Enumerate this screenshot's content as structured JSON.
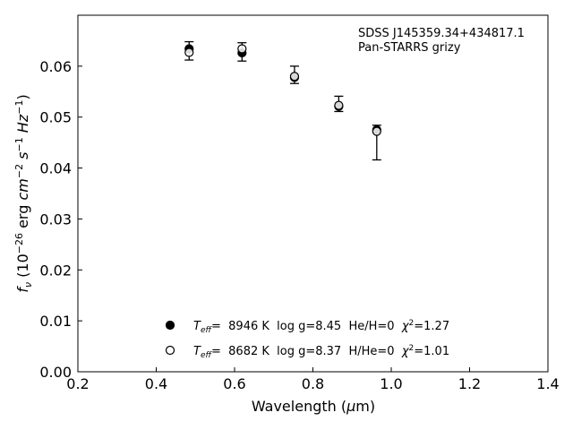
{
  "chart_data": {
    "type": "scatter",
    "title": "",
    "annotation": [
      "SDSS J145359.34+434817.1",
      "Pan-STARRS grizy"
    ],
    "xlabel": "Wavelength (μm)",
    "ylabel": "fν (10⁻²⁶ erg cm⁻² s⁻¹ Hz⁻¹)",
    "xlim": [
      0.2,
      1.4
    ],
    "ylim": [
      0.0,
      0.07
    ],
    "xticks": [
      0.2,
      0.4,
      0.6,
      0.8,
      1.0,
      1.2,
      1.4
    ],
    "xtick_labels": [
      "0.2",
      "0.4",
      "0.6",
      "0.8",
      "1.0",
      "1.2",
      "1.4"
    ],
    "yticks": [
      0.0,
      0.01,
      0.02,
      0.03,
      0.04,
      0.05,
      0.06
    ],
    "ytick_labels": [
      "0.00",
      "0.01",
      "0.02",
      "0.03",
      "0.04",
      "0.05",
      "0.06"
    ],
    "grid": false,
    "legend_position": "bottom-center",
    "observed": {
      "x": [
        0.484,
        0.619,
        0.753,
        0.866,
        0.963
      ],
      "y": [
        0.063,
        0.0628,
        0.0583,
        0.0526,
        0.045
      ],
      "yerr": [
        0.0018,
        0.0018,
        0.0017,
        0.0015,
        0.0034
      ]
    },
    "series": [
      {
        "name": "T_eff= 8946 K  log g=8.45  He/H=0  χ²=1.27",
        "marker": "filled-circle",
        "x": [
          0.484,
          0.619,
          0.753,
          0.866,
          0.963
        ],
        "y": [
          0.0634,
          0.0626,
          0.0578,
          0.0521,
          0.0475
        ]
      },
      {
        "name": "T_eff= 8682 K  log g=8.37  H/He=0  χ²=1.01",
        "marker": "open-circle",
        "x": [
          0.484,
          0.619,
          0.753,
          0.866,
          0.963
        ],
        "y": [
          0.0627,
          0.0634,
          0.058,
          0.0523,
          0.0472
        ]
      }
    ]
  },
  "legend": [
    {
      "teff_label": "T",
      "teff_sub": "eff",
      "text": "=  8946 K  log g=8.45  He/H=0  ",
      "chi_label": "χ",
      "chi_sup": "2",
      "chi_value": "=1.27"
    },
    {
      "teff_label": "T",
      "teff_sub": "eff",
      "text": "=  8682 K  log g=8.37  H/He=0  ",
      "chi_label": "χ",
      "chi_sup": "2",
      "chi_value": "=1.01"
    }
  ],
  "axis_title_x": {
    "main": "Wavelength (",
    "mu": "μ",
    "unit": "m)"
  },
  "axis_title_y": {
    "f": "f",
    "nu": "ν",
    "open": " (10",
    "exp1": "−26",
    "erg": " erg ",
    "cm": "cm",
    "exp2": "−2",
    "s": " s",
    "exp3": "−1",
    "hz": " Hz",
    "exp4": "−1",
    "close": ")"
  },
  "colors": {
    "marker": "#000000",
    "axis": "#000000",
    "background": "#ffffff"
  }
}
